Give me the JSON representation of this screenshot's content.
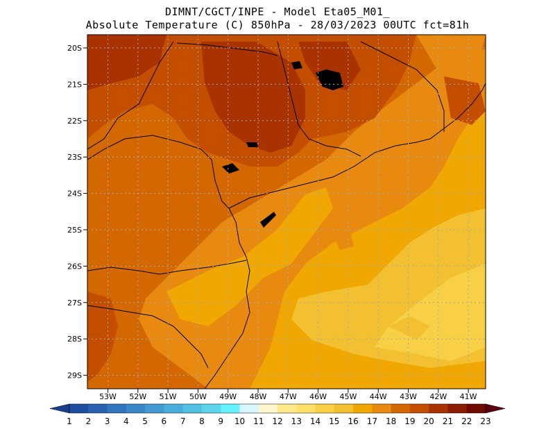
{
  "header": {
    "line1": "DIMNT/CGCT/INPE  -   Model Eta05_M01_",
    "line2": "Absolute Temperature (C) 850hPa  -   28/03/2023 00UTC fct=81h"
  },
  "map": {
    "lat_labels": [
      "20S",
      "21S",
      "22S",
      "23S",
      "24S",
      "25S",
      "26S",
      "27S",
      "28S",
      "29S"
    ],
    "lon_labels": [
      "53W",
      "52W",
      "51W",
      "50W",
      "49W",
      "48W",
      "47W",
      "46W",
      "45W",
      "44W",
      "43W",
      "42W",
      "41W"
    ]
  },
  "colorbar": {
    "labels": [
      "1",
      "2",
      "3",
      "4",
      "5",
      "6",
      "7",
      "8",
      "9",
      "10",
      "11",
      "12",
      "13",
      "14",
      "15",
      "16",
      "17",
      "18",
      "19",
      "20",
      "21",
      "22",
      "23"
    ],
    "colors": [
      "#1a3f8f",
      "#1f4d9e",
      "#2a60b0",
      "#3274bd",
      "#3a87c8",
      "#429ad2",
      "#4aadd9",
      "#52c0e0",
      "#5cd4ea",
      "#66f2ff",
      "#d8f6ff",
      "#fff6d0",
      "#ffe98a",
      "#ffe066",
      "#f7d046",
      "#f2c030",
      "#f0a800",
      "#e88a10",
      "#d46800",
      "#c44e00",
      "#a83200",
      "#8a1c00",
      "#6e0a00",
      "#5a0010"
    ]
  }
}
